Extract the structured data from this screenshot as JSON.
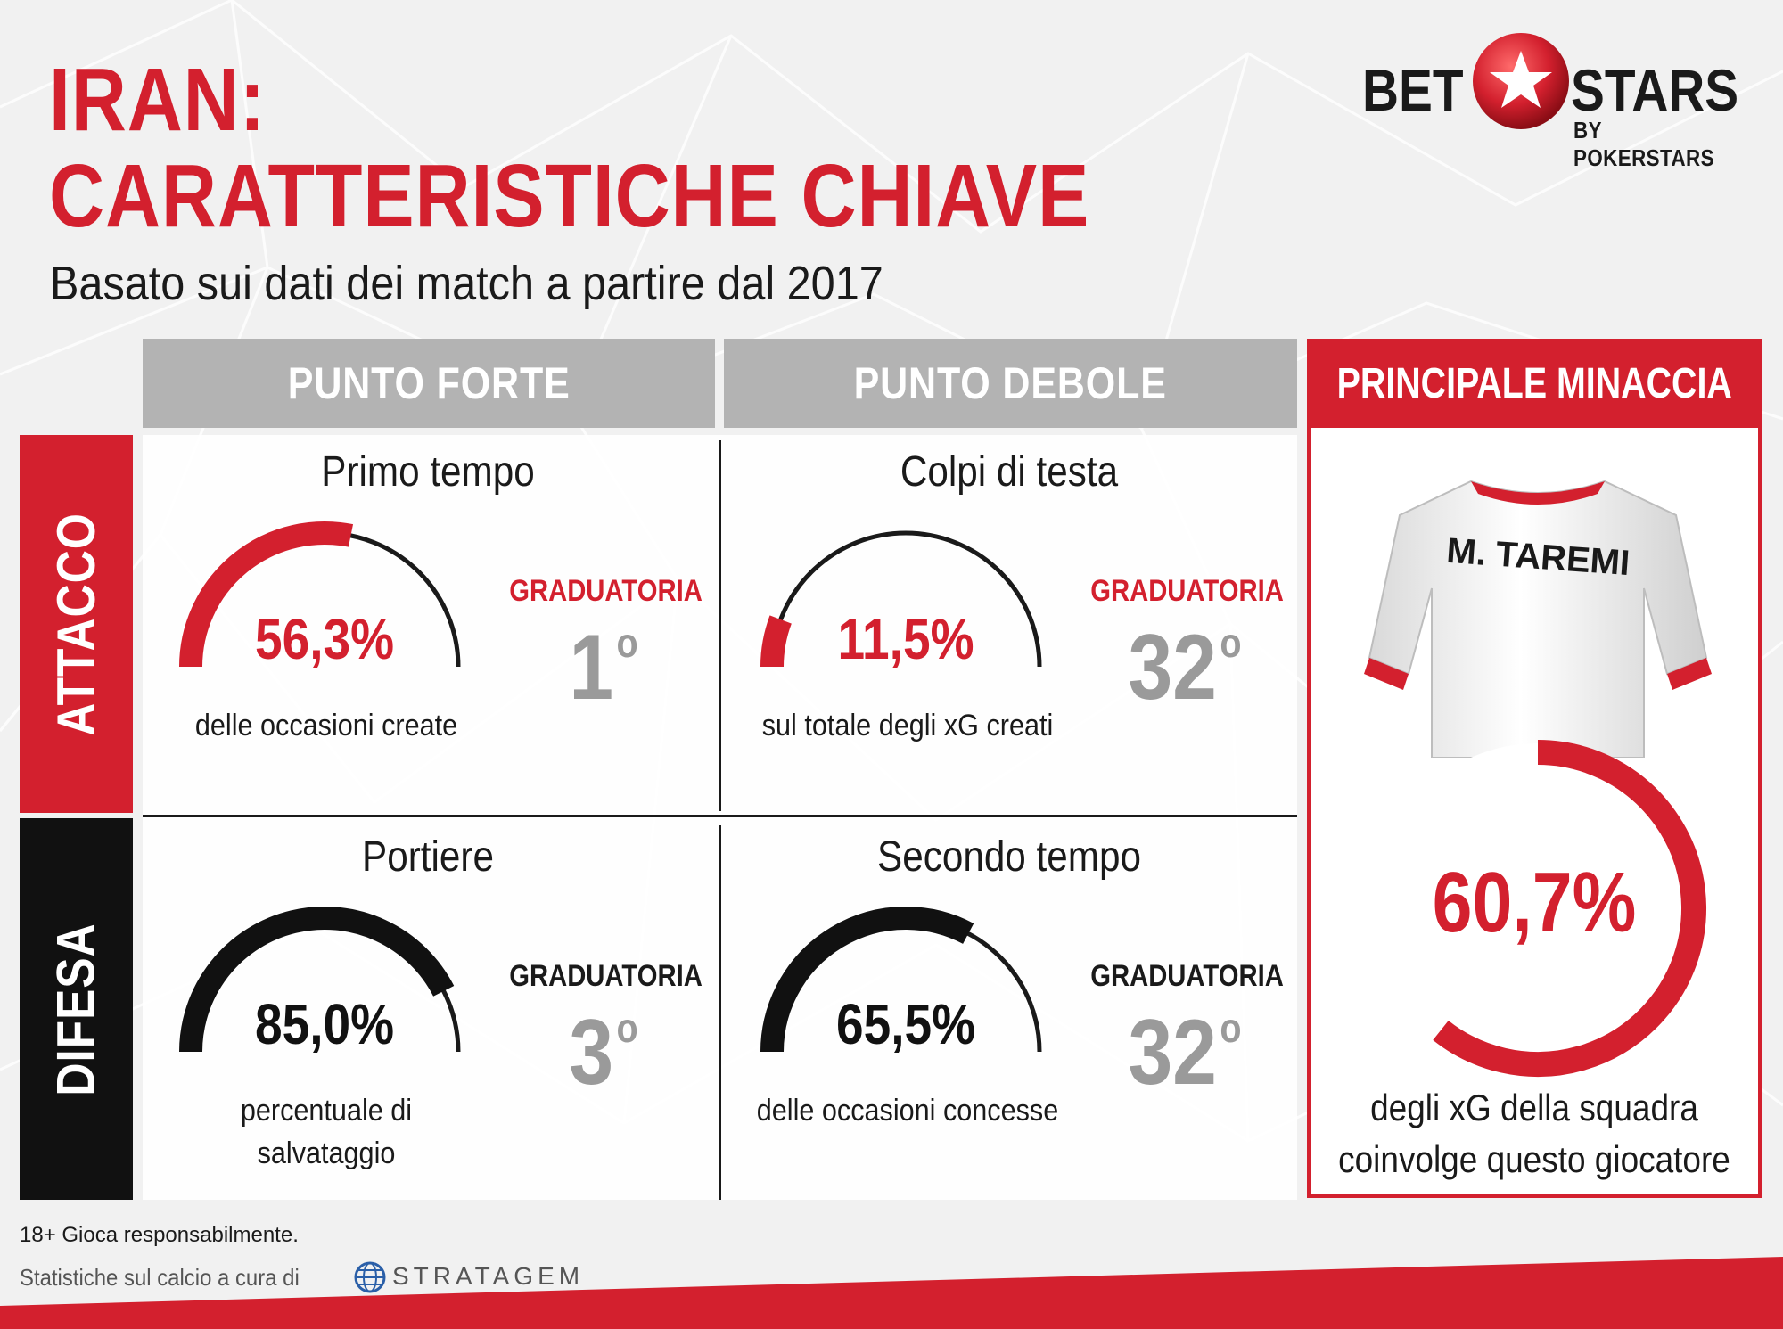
{
  "title_line1": "IRAN:",
  "title_line2": "CARATTERISTICHE CHIAVE",
  "subtitle": "Basato sui dati dei match a partire dal 2017",
  "logo": {
    "part1": "BET",
    "part2": "STARS",
    "tagline": "BY POKERSTARS"
  },
  "columns": {
    "strength": "PUNTO FORTE",
    "weakness": "PUNTO DEBOLE",
    "threat": "PRINCIPALE MINACCIA"
  },
  "rows": {
    "attack": "ATTACCO",
    "defense": "DIFESA"
  },
  "cells": {
    "attack_strength": {
      "category": "Primo tempo",
      "value": "56,3%",
      "description": "delle occasioni create",
      "rank_label": "GRADUATORIA",
      "rank": "1",
      "rank_suffix": "o",
      "fill": 0.563
    },
    "attack_weakness": {
      "category": "Colpi di testa",
      "value": "11,5%",
      "description": "sul totale degli xG creati",
      "rank_label": "GRADUATORIA",
      "rank": "32",
      "rank_suffix": "o",
      "fill": 0.115
    },
    "defense_strength": {
      "category": "Portiere",
      "value": "85,0%",
      "description_line1": "percentuale di",
      "description_line2": "salvataggio",
      "rank_label": "GRADUATORIA",
      "rank": "3",
      "rank_suffix": "o",
      "fill": 0.85
    },
    "defense_weakness": {
      "category": "Secondo tempo",
      "value": "65,5%",
      "description": "delle occasioni concesse",
      "rank_label": "GRADUATORIA",
      "rank": "32",
      "rank_suffix": "o",
      "fill": 0.655
    }
  },
  "threat": {
    "player_name": "M. TAREMI",
    "value": "60,7%",
    "fill": 0.607,
    "description_line1": "degli xG della squadra",
    "description_line2": "coinvolge questo giocatore"
  },
  "footer": {
    "responsible": "18+ Gioca responsabilmente.",
    "credit": "Statistiche sul calcio a cura di",
    "brand": "STRATAGEM"
  },
  "colors": {
    "accent": "#d3202e",
    "grey": "#b3b3b3",
    "dark": "#1a1a1a"
  }
}
